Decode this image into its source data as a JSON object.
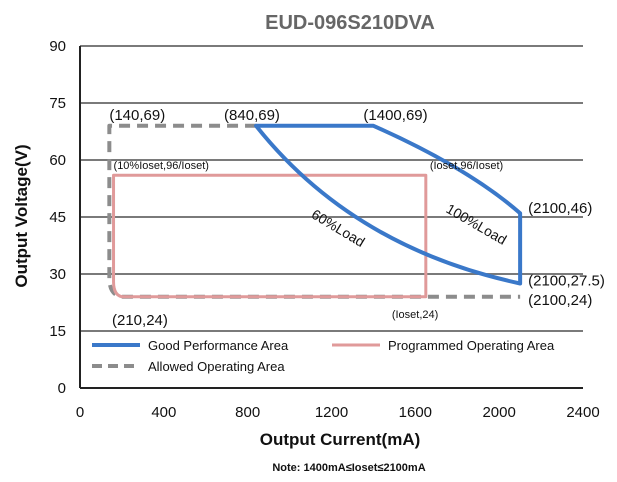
{
  "chart_data": {
    "type": "line",
    "title": "EUD-096S210DVA",
    "xlabel": "Output Current(mA)",
    "ylabel": "Output Voltage(V)",
    "xlim": [
      0,
      2400
    ],
    "ylim": [
      0,
      90
    ],
    "x_ticks": [
      "0",
      "400",
      "800",
      "1200",
      "1600",
      "2000",
      "2400"
    ],
    "y_ticks": [
      "0",
      "15",
      "30",
      "45",
      "60",
      "75",
      "90"
    ],
    "grid": "horizontal",
    "note": "Note:  1400mA≤Ioset≤2100mA",
    "colors": {
      "good": "#3a78c9",
      "programmed": "#e09a9a",
      "allowed": "#8c8c8c",
      "grid": "#7a7a7a"
    },
    "series": [
      {
        "name": "Good Performance Area",
        "style": "solid",
        "points": [
          [
            840,
            69
          ],
          [
            1400,
            69
          ],
          [
            2100,
            46
          ],
          [
            2100,
            27.5
          ],
          [
            1800,
            31
          ],
          [
            1500,
            37
          ],
          [
            1200,
            48
          ],
          [
            1000,
            58
          ],
          [
            840,
            69
          ]
        ]
      },
      {
        "name": "Programmed Operating Area",
        "style": "solid",
        "points": [
          [
            160,
            56
          ],
          [
            1650,
            56
          ],
          [
            1650,
            24
          ],
          [
            210,
            24
          ],
          [
            160,
            28
          ],
          [
            160,
            56
          ]
        ]
      },
      {
        "name": "Allowed Operating Area",
        "style": "dashed",
        "points": [
          [
            840,
            69
          ],
          [
            140,
            69
          ],
          [
            140,
            29
          ],
          [
            210,
            24
          ],
          [
            2100,
            24
          ]
        ]
      }
    ],
    "legend_position": "bottom-left",
    "annotations": [
      {
        "text": "(140,69)",
        "x": 140,
        "y": 69
      },
      {
        "text": "(840,69)",
        "x": 840,
        "y": 69
      },
      {
        "text": "(1400,69)",
        "x": 1400,
        "y": 69
      },
      {
        "text": "(10%Ioset,96/Ioset)",
        "x": 160,
        "y": 56
      },
      {
        "text": "(Ioset,96/Ioset)",
        "x": 1650,
        "y": 56
      },
      {
        "text": "(2100,46)",
        "x": 2100,
        "y": 46
      },
      {
        "text": "(2100,27.5)",
        "x": 2100,
        "y": 27.5
      },
      {
        "text": "(2100,24)",
        "x": 2100,
        "y": 24
      },
      {
        "text": "(210,24)",
        "x": 210,
        "y": 24
      },
      {
        "text": "(Ioset,24)",
        "x": 1650,
        "y": 24
      }
    ],
    "curve_labels": [
      {
        "text": "100%Load",
        "x": 1880,
        "y": 42
      },
      {
        "text": "60%Load",
        "x": 1220,
        "y": 41
      }
    ]
  }
}
